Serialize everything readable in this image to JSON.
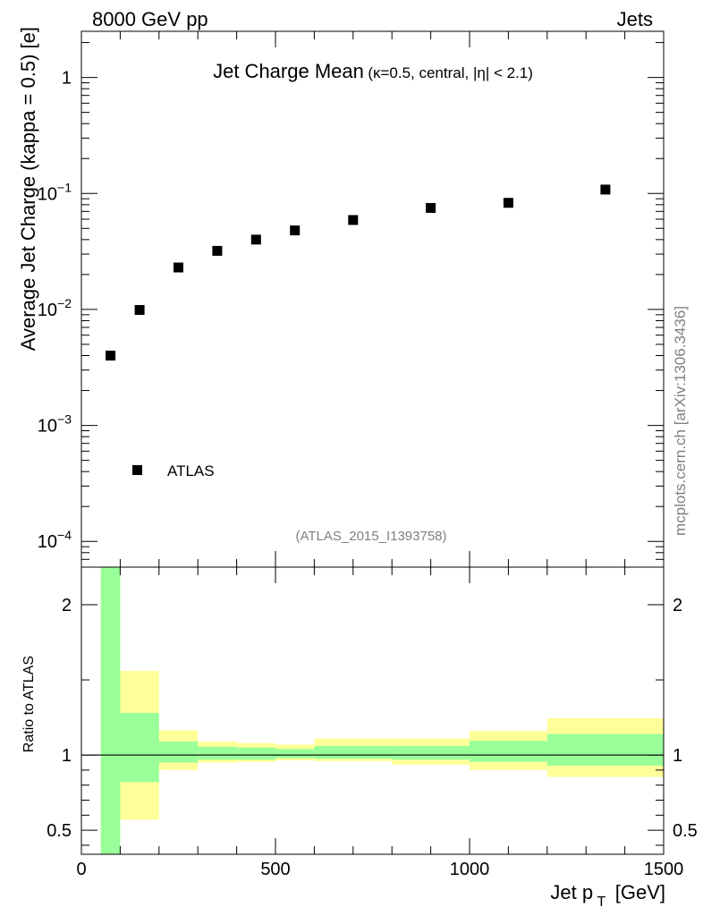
{
  "header": {
    "left": "8000 GeV pp",
    "right": "Jets"
  },
  "chart_data": [
    {
      "type": "scatter",
      "title_main": "Jet Charge Mean",
      "title_sub": "(κ=0.5, central, |η| < 2.1)",
      "ylabel": "Average Jet Charge (kappa = 0.5) [e]",
      "yscale": "log",
      "xlim": [
        0,
        1500
      ],
      "ylim": [
        6e-05,
        2.5
      ],
      "y_ticks": [
        {
          "value": 0.0001,
          "base": "10",
          "exp": "−4"
        },
        {
          "value": 0.001,
          "base": "10",
          "exp": "−3"
        },
        {
          "value": 0.01,
          "base": "10",
          "exp": "−2"
        },
        {
          "value": 0.1,
          "base": "10",
          "exp": "−1"
        },
        {
          "value": 1,
          "base": "1",
          "exp": ""
        }
      ],
      "legend": {
        "entry": "ATLAS",
        "placement": "bottom-left"
      },
      "series": [
        {
          "name": "ATLAS",
          "x": [
            75,
            150,
            250,
            350,
            450,
            550,
            700,
            900,
            1100,
            1350
          ],
          "y": [
            0.004,
            0.0099,
            0.023,
            0.032,
            0.04,
            0.048,
            0.059,
            0.075,
            0.083,
            0.108
          ]
        }
      ],
      "analysis_label": "(ATLAS_2015_I1393758)"
    },
    {
      "type": "area",
      "ylabel": "Ratio to ATLAS",
      "xlabel_main": "Jet p",
      "xlabel_sub": "T",
      "xlabel_unit": "[GeV]",
      "xlim": [
        0,
        1500
      ],
      "ylim": [
        0.34,
        2.25
      ],
      "x_ticks": [
        "0",
        "500",
        "1000",
        "1500"
      ],
      "x_tick_values": [
        0,
        500,
        1000,
        1500
      ],
      "y_ticks": [
        "0.5",
        "1",
        "2"
      ],
      "y_tick_values": [
        0.5,
        1,
        2
      ],
      "reference_line": 1,
      "bands": {
        "bin_edges": [
          50,
          100,
          200,
          300,
          400,
          500,
          600,
          800,
          1000,
          1200,
          1500
        ],
        "yellow_low": [
          0.34,
          0.57,
          0.9,
          0.95,
          0.955,
          0.965,
          0.96,
          0.935,
          0.9,
          0.855
        ],
        "yellow_high": [
          2.25,
          1.56,
          1.165,
          1.09,
          1.08,
          1.07,
          1.11,
          1.11,
          1.16,
          1.245
        ],
        "green_low": [
          0.34,
          0.82,
          0.95,
          0.97,
          0.97,
          0.98,
          0.975,
          0.97,
          0.955,
          0.93
        ],
        "green_high": [
          2.25,
          1.28,
          1.09,
          1.055,
          1.05,
          1.04,
          1.06,
          1.06,
          1.095,
          1.14
        ],
        "colors": {
          "yellow": "#ffff99",
          "green": "#99ff99"
        }
      }
    }
  ],
  "side_label": "mcplots.cern.ch [arXiv:1306.3436]",
  "colors": {
    "marker": "#000000",
    "analysis_label": "#808080"
  }
}
